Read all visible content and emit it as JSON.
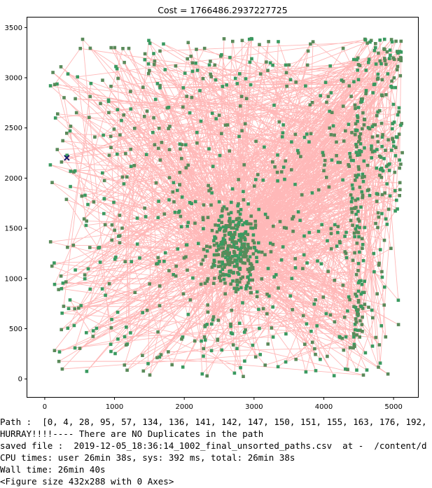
{
  "chart_data": {
    "type": "scatter",
    "title": "Cost = 1766486.2937227725",
    "xlabel": "",
    "ylabel": "",
    "xlim": [
      -250,
      5350
    ],
    "ylim": [
      -180,
      3600
    ],
    "xticks": [
      0,
      1000,
      2000,
      3000,
      4000,
      5000
    ],
    "yticks": [
      0,
      500,
      1000,
      1500,
      2000,
      2500,
      3000,
      3500
    ],
    "grid": false,
    "series": [
      {
        "name": "path",
        "kind": "line",
        "color": "#ffb0b0"
      },
      {
        "name": "cities",
        "kind": "marker",
        "marker": "square",
        "color": "#3a9a60"
      },
      {
        "name": "start",
        "kind": "marker",
        "marker": "x",
        "color": "#1a1a6e",
        "x": 316,
        "y": 2202
      }
    ],
    "num_points": 1200,
    "seed": 20191205
  },
  "output": {
    "line1": "Path :  [0, 4, 28, 95, 57, 134, 136, 141, 142, 147, 150, 151, 155, 163, 176, 192,",
    "line2": "HURRAY!!!!---- There are NO Duplicates in the path",
    "line3": "saved file :  2019-12-05_18:36:14_1002_final_unsorted_paths.csv  at -  /content/d",
    "line4": "CPU times: user 26min 38s, sys: 392 ms, total: 26min 38s",
    "line5": "Wall time: 26min 40s",
    "line6": "<Figure size 432x288 with 0 Axes>"
  }
}
